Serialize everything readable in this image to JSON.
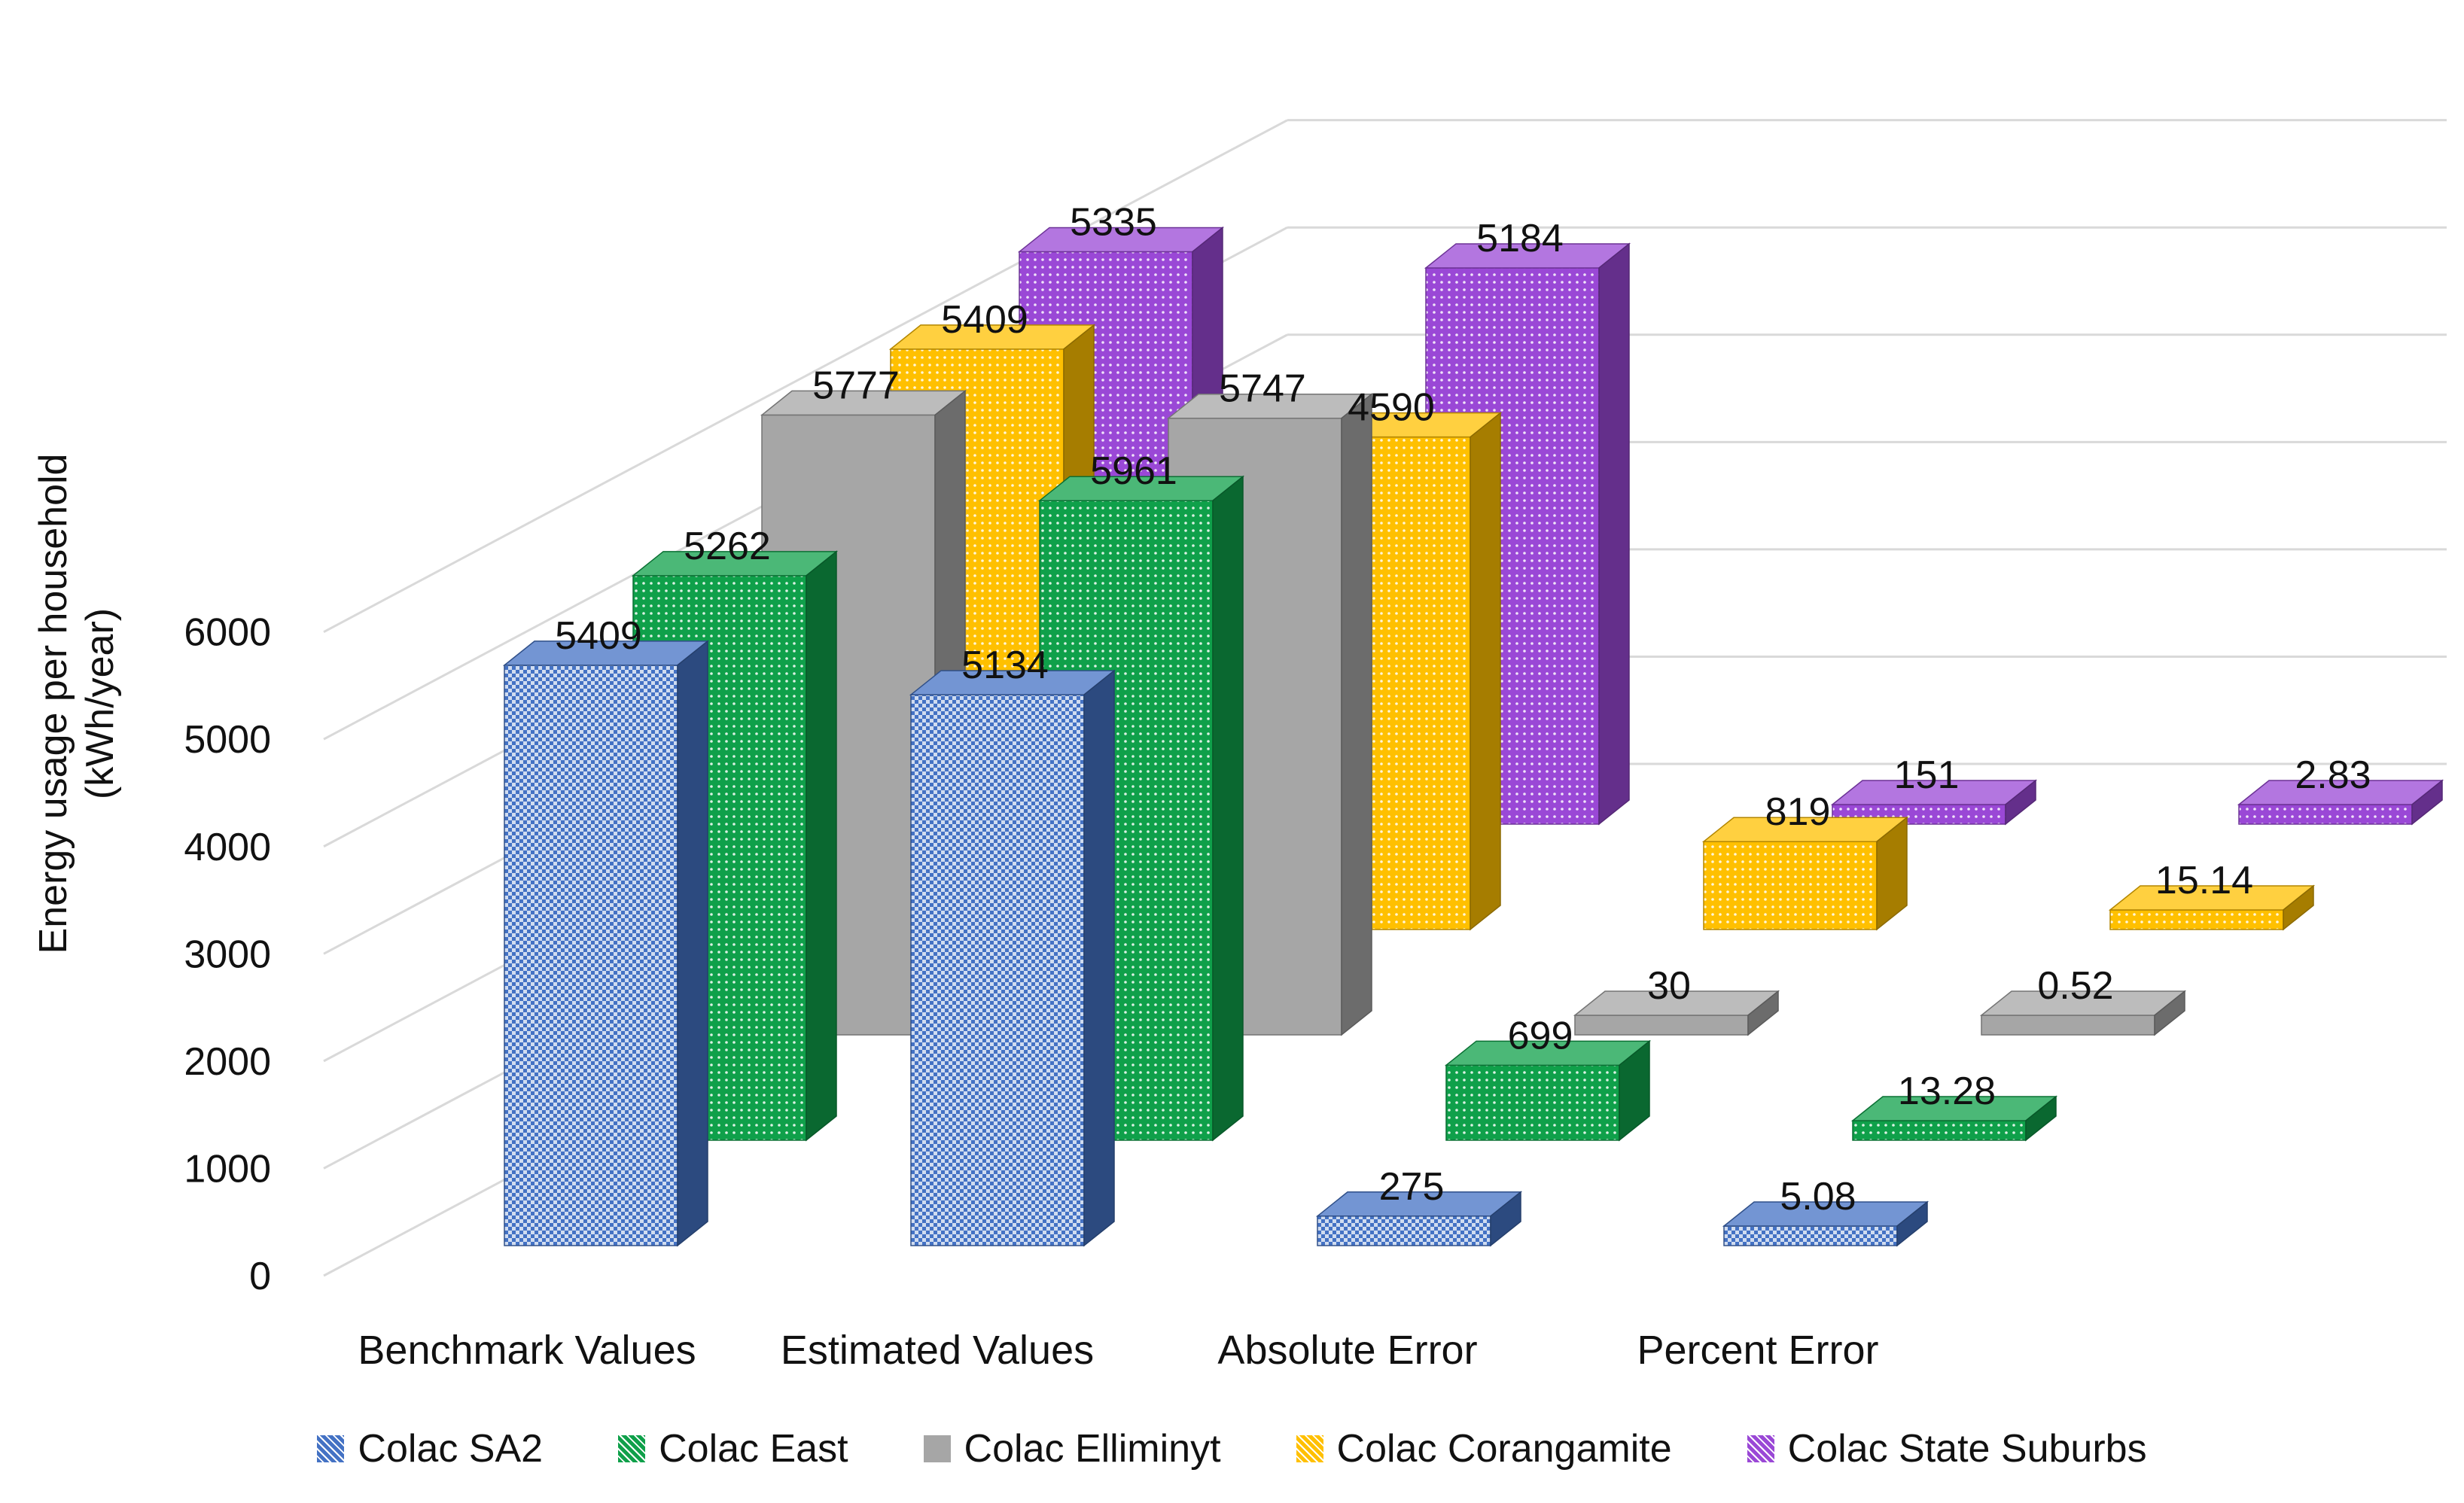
{
  "chart_data": {
    "type": "bar",
    "title": "",
    "ylabel": "Energy usage  per household (kWh/year)",
    "ylabel_lines": [
      "Energy usage  per household",
      "(kWh/year)"
    ],
    "ylim": [
      0,
      6000
    ],
    "yticks": [
      "0",
      "1000",
      "2000",
      "3000",
      "4000",
      "5000",
      "6000"
    ],
    "categories": [
      "Benchmark Values",
      "Estimated Values",
      "Absolute Error",
      "Percent Error"
    ],
    "series": [
      {
        "name": "Colac SA2",
        "color": "#4472C4",
        "values": [
          5409,
          5134,
          275,
          5.08
        ],
        "labels": [
          "5409",
          "5134",
          "275",
          "5.08"
        ]
      },
      {
        "name": "Colac East",
        "color": "#0FA04A",
        "values": [
          5262,
          5961,
          699,
          13.28
        ],
        "labels": [
          "5262",
          "5961",
          "699",
          "13.28"
        ]
      },
      {
        "name": "Colac Elliminyt",
        "color": "#A6A6A6",
        "values": [
          5777,
          5747,
          30,
          0.52
        ],
        "labels": [
          "5777",
          "5747",
          "30",
          "0.52"
        ]
      },
      {
        "name": "Colac  Corangamite",
        "color": "#FFC000",
        "values": [
          5409,
          4590,
          819,
          15.14
        ],
        "labels": [
          "5409",
          "4590",
          "819",
          "15.14"
        ]
      },
      {
        "name": "Colac State Suburbs",
        "color": "#9A48D6",
        "values": [
          5335,
          5184,
          151,
          2.83
        ],
        "labels": [
          "5335",
          "5184",
          "151",
          "2.83"
        ]
      }
    ],
    "legend_position": "bottom",
    "grid": true
  }
}
